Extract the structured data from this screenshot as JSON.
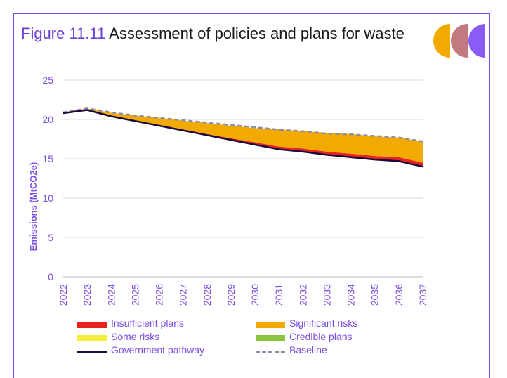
{
  "header": {
    "figure_label": "Figure 11.11",
    "title": "Assessment of policies and plans for waste"
  },
  "logo": {
    "icon": "three-semicircles-logo",
    "colors": [
      "#f2a900",
      "#c07a80",
      "#8a5cf5"
    ]
  },
  "chart_data": {
    "type": "area",
    "x": [
      2022,
      2023,
      2024,
      2025,
      2026,
      2027,
      2028,
      2029,
      2030,
      2031,
      2032,
      2033,
      2034,
      2035,
      2036,
      2037
    ],
    "ylabel": "Emissions (MtCO2e)",
    "ylim": [
      0,
      25
    ],
    "yticks": [
      0,
      5,
      10,
      15,
      20,
      25
    ],
    "grid": true,
    "legend_position": "bottom",
    "series": [
      {
        "name": "Government pathway",
        "kind": "line",
        "color": "#1a0a3d",
        "values": [
          20.8,
          21.2,
          20.4,
          19.8,
          19.2,
          18.6,
          18.0,
          17.4,
          16.8,
          16.2,
          15.9,
          15.5,
          15.2,
          14.9,
          14.7,
          14.0
        ]
      },
      {
        "name": "Insufficient plans",
        "kind": "band",
        "color": "#e8231f",
        "values": [
          0.0,
          0.0,
          0.05,
          0.1,
          0.1,
          0.15,
          0.15,
          0.2,
          0.3,
          0.35,
          0.4,
          0.4,
          0.45,
          0.45,
          0.5,
          0.5
        ]
      },
      {
        "name": "Significant risks",
        "kind": "band",
        "color": "#f2a900",
        "values": [
          0.1,
          0.2,
          0.4,
          0.6,
          0.9,
          1.1,
          1.4,
          1.6,
          1.8,
          2.2,
          2.2,
          2.4,
          2.5,
          2.5,
          2.5,
          2.7
        ]
      },
      {
        "name": "Some risks",
        "kind": "band",
        "color": "#f5ee3a",
        "values": [
          0,
          0,
          0,
          0,
          0,
          0,
          0,
          0,
          0,
          0,
          0,
          0,
          0,
          0,
          0,
          0
        ]
      },
      {
        "name": "Credible plans",
        "kind": "band",
        "color": "#8cc63f",
        "values": [
          0,
          0,
          0,
          0,
          0,
          0,
          0,
          0,
          0,
          0,
          0,
          0,
          0,
          0,
          0,
          0
        ]
      },
      {
        "name": "Baseline",
        "kind": "dashed",
        "color": "#8a8fa8",
        "values": [
          20.9,
          21.4,
          20.9,
          20.5,
          20.2,
          19.9,
          19.6,
          19.3,
          19.0,
          18.7,
          18.5,
          18.2,
          18.1,
          17.9,
          17.7,
          17.2
        ]
      }
    ],
    "legend": [
      {
        "label": "Insufficient plans",
        "color": "#e8231f",
        "style": "bar"
      },
      {
        "label": "Significant risks",
        "color": "#f2a900",
        "style": "bar"
      },
      {
        "label": "Some risks",
        "color": "#f5ee3a",
        "style": "bar"
      },
      {
        "label": "Credible plans",
        "color": "#8cc63f",
        "style": "bar"
      },
      {
        "label": "Government pathway",
        "color": "#1a0a3d",
        "style": "line"
      },
      {
        "label": "Baseline",
        "color": "#8a8fa8",
        "style": "dashed"
      }
    ]
  }
}
